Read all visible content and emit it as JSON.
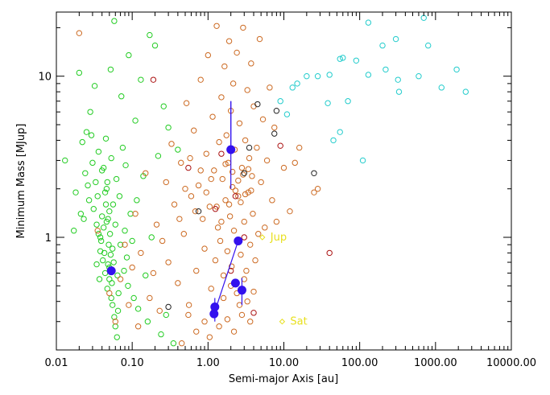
{
  "chart_data": {
    "type": "scatter",
    "title": "",
    "xlabel": "Semi-major Axis [au]",
    "ylabel": "Minimum Mass [MJup]",
    "x_scale": "log",
    "y_scale": "log",
    "xlim": [
      0.01,
      10000
    ],
    "ylim": [
      0.2,
      25
    ],
    "x_ticks": [
      {
        "value": 0.01,
        "label": "0.01"
      },
      {
        "value": 0.1,
        "label": "0.10"
      },
      {
        "value": 1,
        "label": "1.00"
      },
      {
        "value": 10,
        "label": "10.00"
      },
      {
        "value": 100,
        "label": "100.00"
      },
      {
        "value": 1000,
        "label": "1000.00"
      },
      {
        "value": 10000,
        "label": "10000.00"
      }
    ],
    "y_ticks": [
      {
        "value": 1,
        "label": "1"
      },
      {
        "value": 10,
        "label": "10"
      }
    ],
    "grid": false,
    "legend": "none",
    "colors": {
      "green": "#22cc22",
      "orange": "#cc6a22",
      "cyan": "#22cccc",
      "darkred": "#aa1111",
      "black": "#222222",
      "blue": "#3311ee",
      "yellow": "#e8e020"
    },
    "series": [
      {
        "color": "green",
        "marker": "open-circle",
        "points": [
          [
            0.013,
            3.0
          ],
          [
            0.017,
            1.1
          ],
          [
            0.018,
            1.9
          ],
          [
            0.02,
            10.5
          ],
          [
            0.021,
            1.4
          ],
          [
            0.022,
            3.9
          ],
          [
            0.023,
            1.3
          ],
          [
            0.024,
            2.5
          ],
          [
            0.025,
            4.5
          ],
          [
            0.026,
            2.1
          ],
          [
            0.027,
            1.7
          ],
          [
            0.028,
            6.0
          ],
          [
            0.029,
            4.3
          ],
          [
            0.03,
            2.9
          ],
          [
            0.031,
            1.5
          ],
          [
            0.032,
            8.7
          ],
          [
            0.033,
            2.2
          ],
          [
            0.034,
            1.2
          ],
          [
            0.035,
            1.8
          ],
          [
            0.036,
            3.4
          ],
          [
            0.037,
            0.55
          ],
          [
            0.038,
            1.0
          ],
          [
            0.039,
            0.95
          ],
          [
            0.04,
            2.6
          ],
          [
            0.041,
            0.72
          ],
          [
            0.042,
            1.15
          ],
          [
            0.043,
            0.8
          ],
          [
            0.044,
            0.6
          ],
          [
            0.045,
            4.1
          ],
          [
            0.046,
            2.0
          ],
          [
            0.047,
            0.48
          ],
          [
            0.048,
            1.3
          ],
          [
            0.049,
            0.9
          ],
          [
            0.05,
            0.65
          ],
          [
            0.051,
            1.05
          ],
          [
            0.052,
            11.0
          ],
          [
            0.053,
            3.1
          ],
          [
            0.054,
            0.52
          ],
          [
            0.055,
            0.85
          ],
          [
            0.056,
            1.6
          ],
          [
            0.057,
            0.7
          ],
          [
            0.058,
            22.0
          ],
          [
            0.06,
            1.2
          ],
          [
            0.062,
            2.3
          ],
          [
            0.064,
            0.58
          ],
          [
            0.066,
            0.45
          ],
          [
            0.068,
            1.8
          ],
          [
            0.07,
            0.9
          ],
          [
            0.072,
            7.5
          ],
          [
            0.075,
            3.6
          ],
          [
            0.078,
            0.62
          ],
          [
            0.08,
            1.1
          ],
          [
            0.082,
            2.8
          ],
          [
            0.085,
            0.75
          ],
          [
            0.088,
            0.5
          ],
          [
            0.09,
            13.5
          ],
          [
            0.095,
            1.4
          ],
          [
            0.1,
            0.95
          ],
          [
            0.105,
            0.42
          ],
          [
            0.11,
            5.3
          ],
          [
            0.115,
            1.7
          ],
          [
            0.12,
            0.36
          ],
          [
            0.13,
            9.5
          ],
          [
            0.14,
            2.4
          ],
          [
            0.15,
            0.58
          ],
          [
            0.16,
            0.3
          ],
          [
            0.17,
            18.0
          ],
          [
            0.18,
            1.0
          ],
          [
            0.2,
            15.5
          ],
          [
            0.22,
            3.2
          ],
          [
            0.24,
            0.25
          ],
          [
            0.26,
            6.5
          ],
          [
            0.28,
            0.33
          ],
          [
            0.3,
            4.8
          ],
          [
            0.35,
            0.22
          ],
          [
            0.4,
            3.5
          ],
          [
            0.045,
            1.6
          ],
          [
            0.047,
            2.2
          ],
          [
            0.05,
            1.45
          ],
          [
            0.052,
            0.78
          ],
          [
            0.05,
            0.55
          ],
          [
            0.048,
            0.68
          ],
          [
            0.046,
            1.25
          ],
          [
            0.044,
            1.9
          ],
          [
            0.042,
            2.7
          ],
          [
            0.04,
            1.35
          ],
          [
            0.038,
            0.82
          ],
          [
            0.036,
            1.05
          ],
          [
            0.034,
            0.68
          ],
          [
            0.053,
            0.42
          ],
          [
            0.055,
            0.38
          ],
          [
            0.058,
            0.32
          ],
          [
            0.06,
            0.28
          ],
          [
            0.063,
            0.24
          ],
          [
            0.065,
            0.35
          ]
        ]
      },
      {
        "color": "orange",
        "marker": "open-circle",
        "points": [
          [
            0.02,
            18.5
          ],
          [
            0.035,
            1.1
          ],
          [
            0.05,
            0.45
          ],
          [
            0.06,
            0.3
          ],
          [
            0.07,
            0.55
          ],
          [
            0.08,
            0.9
          ],
          [
            0.09,
            0.38
          ],
          [
            0.1,
            0.65
          ],
          [
            0.11,
            1.4
          ],
          [
            0.12,
            0.28
          ],
          [
            0.13,
            0.8
          ],
          [
            0.15,
            2.5
          ],
          [
            0.17,
            0.42
          ],
          [
            0.19,
            0.6
          ],
          [
            0.21,
            1.2
          ],
          [
            0.23,
            0.35
          ],
          [
            0.25,
            0.95
          ],
          [
            0.28,
            2.2
          ],
          [
            0.3,
            0.7
          ],
          [
            0.33,
            3.8
          ],
          [
            0.36,
            1.6
          ],
          [
            0.4,
            0.52
          ],
          [
            0.44,
            2.9
          ],
          [
            0.48,
            1.05
          ],
          [
            0.52,
            6.8
          ],
          [
            0.56,
            0.38
          ],
          [
            0.6,
            1.8
          ],
          [
            0.65,
            4.6
          ],
          [
            0.7,
            0.62
          ],
          [
            0.75,
            2.1
          ],
          [
            0.8,
            9.5
          ],
          [
            0.85,
            1.3
          ],
          [
            0.9,
            0.85
          ],
          [
            0.95,
            3.3
          ],
          [
            1.0,
            13.5
          ],
          [
            1.05,
            1.55
          ],
          [
            1.1,
            0.48
          ],
          [
            1.15,
            5.6
          ],
          [
            1.2,
            2.6
          ],
          [
            1.25,
            0.72
          ],
          [
            1.3,
            20.5
          ],
          [
            1.35,
            1.15
          ],
          [
            1.4,
            3.9
          ],
          [
            1.45,
            0.95
          ],
          [
            1.5,
            7.4
          ],
          [
            1.55,
            2.3
          ],
          [
            1.6,
            0.58
          ],
          [
            1.65,
            11.5
          ],
          [
            1.7,
            1.7
          ],
          [
            1.75,
            4.3
          ],
          [
            1.8,
            0.82
          ],
          [
            1.85,
            2.9
          ],
          [
            1.9,
            16.5
          ],
          [
            1.95,
            1.35
          ],
          [
            2.0,
            6.1
          ],
          [
            2.05,
            0.66
          ],
          [
            2.1,
            2.05
          ],
          [
            2.15,
            9.0
          ],
          [
            2.2,
            1.1
          ],
          [
            2.25,
            3.5
          ],
          [
            2.3,
            0.52
          ],
          [
            2.4,
            14.0
          ],
          [
            2.5,
            1.8
          ],
          [
            2.6,
            5.1
          ],
          [
            2.7,
            0.78
          ],
          [
            2.8,
            2.7
          ],
          [
            2.9,
            20.0
          ],
          [
            3.0,
            1.25
          ],
          [
            3.1,
            4.0
          ],
          [
            3.2,
            0.62
          ],
          [
            3.3,
            8.2
          ],
          [
            3.4,
            1.9
          ],
          [
            3.5,
            3.1
          ],
          [
            3.6,
            0.9
          ],
          [
            3.7,
            12.0
          ],
          [
            3.8,
            2.4
          ],
          [
            3.9,
            1.4
          ],
          [
            4.0,
            6.5
          ],
          [
            4.2,
            0.72
          ],
          [
            4.4,
            3.6
          ],
          [
            4.6,
            1.05
          ],
          [
            4.8,
            17.0
          ],
          [
            5.0,
            2.2
          ],
          [
            5.3,
            5.4
          ],
          [
            5.6,
            1.15
          ],
          [
            6.0,
            3.0
          ],
          [
            6.5,
            8.5
          ],
          [
            7.0,
            1.7
          ],
          [
            7.5,
            4.8
          ],
          [
            8.0,
            1.25
          ],
          [
            10.0,
            2.7
          ],
          [
            12.0,
            1.45
          ],
          [
            14.0,
            2.9
          ],
          [
            16.0,
            3.6
          ],
          [
            25.0,
            1.9
          ],
          [
            28.0,
            2.0
          ],
          [
            1.2,
            0.35
          ],
          [
            1.4,
            0.28
          ],
          [
            1.6,
            0.42
          ],
          [
            1.8,
            0.31
          ],
          [
            2.0,
            0.5
          ],
          [
            2.2,
            0.26
          ],
          [
            2.4,
            0.45
          ],
          [
            2.6,
            0.38
          ],
          [
            2.8,
            0.33
          ],
          [
            3.0,
            0.55
          ],
          [
            3.3,
            0.4
          ],
          [
            3.6,
            0.3
          ],
          [
            4.0,
            0.46
          ],
          [
            0.9,
            0.3
          ],
          [
            0.7,
            0.26
          ],
          [
            0.55,
            0.33
          ],
          [
            0.45,
            0.22
          ],
          [
            1.05,
            0.24
          ],
          [
            1.3,
            1.55
          ],
          [
            1.5,
            1.25
          ],
          [
            1.7,
            2.85
          ],
          [
            1.9,
            1.6
          ],
          [
            2.1,
            2.55
          ],
          [
            2.3,
            1.95
          ],
          [
            2.5,
            2.25
          ],
          [
            2.7,
            1.65
          ],
          [
            2.9,
            2.45
          ],
          [
            3.1,
            1.85
          ],
          [
            3.4,
            2.65
          ],
          [
            3.7,
            1.95
          ],
          [
            1.1,
            2.3
          ],
          [
            0.95,
            1.9
          ],
          [
            0.8,
            2.6
          ],
          [
            0.68,
            1.45
          ],
          [
            0.58,
            3.1
          ],
          [
            0.5,
            2.0
          ],
          [
            0.42,
            1.3
          ]
        ]
      },
      {
        "color": "cyan",
        "marker": "open-circle",
        "points": [
          [
            9.0,
            7.0
          ],
          [
            11.0,
            5.8
          ],
          [
            13.0,
            8.5
          ],
          [
            15.0,
            9.0
          ],
          [
            20.0,
            10.0
          ],
          [
            28.0,
            10.0
          ],
          [
            38.0,
            6.8
          ],
          [
            45.0,
            4.0
          ],
          [
            55.0,
            4.5
          ],
          [
            60.0,
            13.0
          ],
          [
            70.0,
            7.0
          ],
          [
            90.0,
            12.5
          ],
          [
            110.0,
            3.0
          ],
          [
            130.0,
            10.2
          ],
          [
            200.0,
            15.5
          ],
          [
            220.0,
            11.0
          ],
          [
            300.0,
            17.0
          ],
          [
            320.0,
            9.5
          ],
          [
            330.0,
            8.0
          ],
          [
            600.0,
            10.0
          ],
          [
            700.0,
            23.0
          ],
          [
            800.0,
            15.5
          ],
          [
            1200.0,
            8.5
          ],
          [
            1900.0,
            11.0
          ],
          [
            2500.0,
            8.0
          ],
          [
            130.0,
            21.5
          ],
          [
            55.0,
            12.8
          ],
          [
            40.0,
            10.2
          ]
        ]
      },
      {
        "color": "darkred",
        "marker": "open-circle",
        "points": [
          [
            0.19,
            9.5
          ],
          [
            0.55,
            2.7
          ],
          [
            1.25,
            1.5
          ],
          [
            1.5,
            3.3
          ],
          [
            2.0,
            0.62
          ],
          [
            2.3,
            1.8
          ],
          [
            3.0,
            1.0
          ],
          [
            4.0,
            0.34
          ],
          [
            9.0,
            3.7
          ],
          [
            40.0,
            0.8
          ]
        ]
      },
      {
        "color": "black",
        "marker": "open-circle",
        "points": [
          [
            0.3,
            0.37
          ],
          [
            0.75,
            1.45
          ],
          [
            4.5,
            6.7
          ],
          [
            8.0,
            6.1
          ],
          [
            7.5,
            4.4
          ],
          [
            25.0,
            2.5
          ],
          [
            3.0,
            2.5
          ],
          [
            3.5,
            3.6
          ]
        ]
      },
      {
        "color": "blue",
        "marker": "filled-circle",
        "points": [
          [
            0.053,
            0.62
          ],
          [
            2.0,
            3.5
          ],
          [
            2.5,
            0.95
          ],
          [
            2.3,
            0.52
          ],
          [
            2.8,
            0.47
          ],
          [
            1.23,
            0.37
          ],
          [
            1.2,
            0.335
          ]
        ]
      }
    ],
    "error_bars": [
      {
        "x": 2.0,
        "y_low": 2.0,
        "y_high": 7.0
      },
      {
        "x": 2.8,
        "y_low": 0.38,
        "y_high": 0.56
      },
      {
        "x": 1.23,
        "y_low": 0.3,
        "y_high": 0.42
      }
    ],
    "connecting_lines": [
      [
        [
          2.0,
          7.0
        ],
        [
          2.0,
          3.5
        ]
      ],
      [
        [
          2.5,
          0.95
        ],
        [
          1.2,
          0.335
        ]
      ]
    ],
    "annotations": [
      {
        "text": "Jup",
        "x": 5.2,
        "y": 1.0
      },
      {
        "text": "Sat",
        "x": 9.5,
        "y": 0.3
      }
    ]
  }
}
